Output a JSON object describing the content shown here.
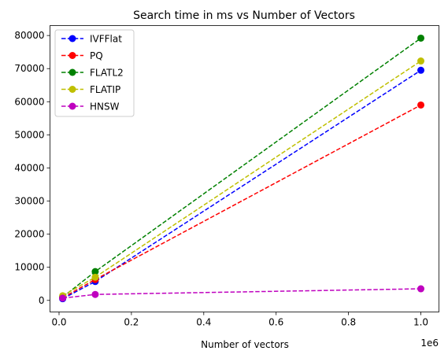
{
  "chart_data": {
    "type": "line",
    "title": "Search time in ms vs Number of Vectors",
    "xlabel": "Number of vectors",
    "ylabel": "",
    "x_offset_label": "1e6",
    "x": [
      10000,
      100000,
      1000000
    ],
    "xlim": [
      -25000,
      1050000
    ],
    "ylim": [
      -3500,
      83000
    ],
    "x_ticks": [
      0.0,
      0.2,
      0.4,
      0.6,
      0.8,
      1.0
    ],
    "x_tick_labels": [
      "0.0",
      "0.2",
      "0.4",
      "0.6",
      "0.8",
      "1.0"
    ],
    "y_ticks": [
      0,
      10000,
      20000,
      30000,
      40000,
      50000,
      60000,
      70000,
      80000
    ],
    "y_tick_labels": [
      "0",
      "10000",
      "20000",
      "30000",
      "40000",
      "50000",
      "60000",
      "70000",
      "80000"
    ],
    "grid": false,
    "legend_position": "upper-left",
    "line_style": "dashed",
    "marker": "circle",
    "series": [
      {
        "name": "IVFFlat",
        "color": "#0000ff",
        "values": [
          500,
          5700,
          69500
        ]
      },
      {
        "name": "PQ",
        "color": "#ff0000",
        "values": [
          800,
          6300,
          59000
        ]
      },
      {
        "name": "FLATL2",
        "color": "#008000",
        "values": [
          1000,
          8700,
          79200
        ]
      },
      {
        "name": "FLATIP",
        "color": "#bfbf00",
        "values": [
          1400,
          7000,
          72300
        ]
      },
      {
        "name": "HNSW",
        "color": "#bf00bf",
        "values": [
          700,
          1800,
          3500
        ]
      }
    ]
  }
}
